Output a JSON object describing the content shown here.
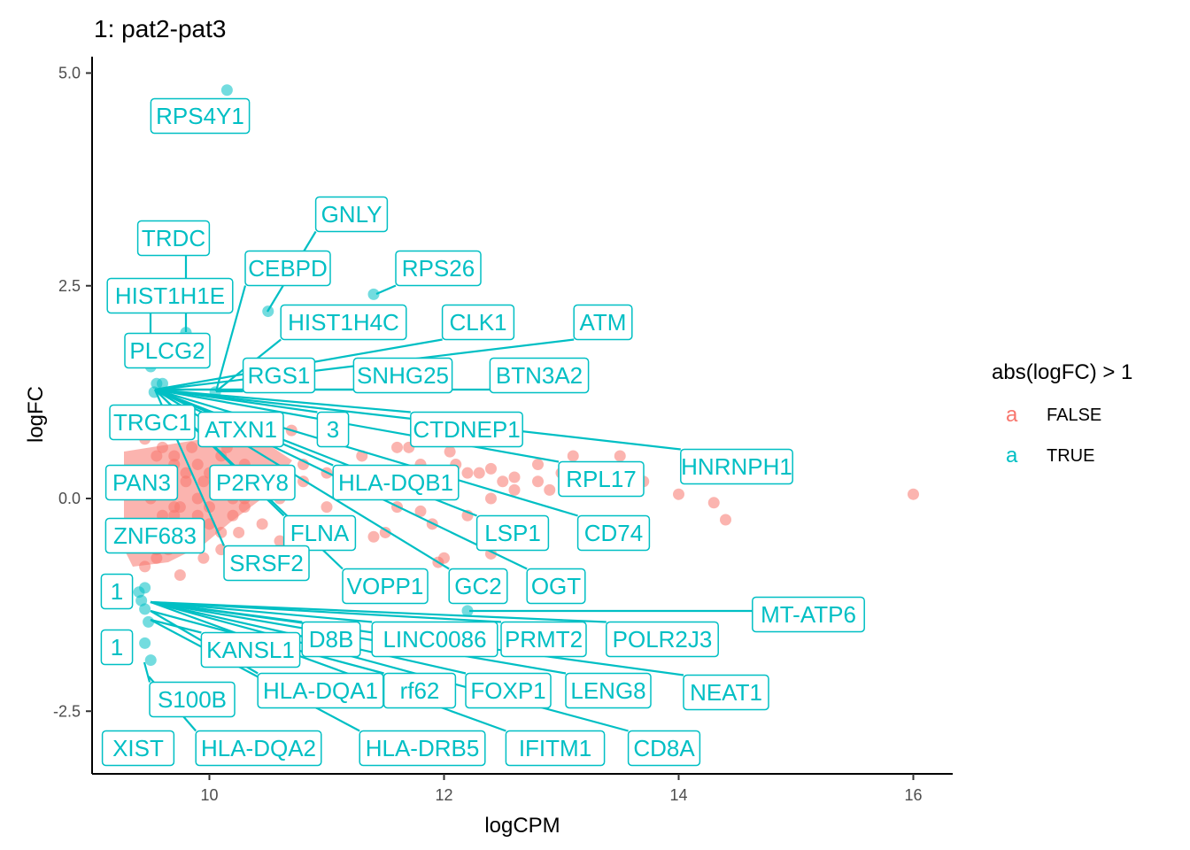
{
  "chart_data": {
    "type": "scatter",
    "title": "1: pat2-pat3",
    "xlabel": "logCPM",
    "ylabel": "logFC",
    "xlim": [
      9.0,
      16.3
    ],
    "ylim": [
      -3.2,
      5.2
    ],
    "xticks": [
      10,
      12,
      14,
      16
    ],
    "yticks": [
      5.0,
      2.5,
      0.0,
      -2.5
    ],
    "ytick_labels": [
      "5.0",
      "2.5",
      "0.0",
      "-2.5"
    ],
    "grid": false,
    "legend": {
      "title": "abs(logFC) > 1",
      "position": "right",
      "key_glyph": "a",
      "entries": [
        {
          "label": "FALSE",
          "color": "#f8766d"
        },
        {
          "label": "TRUE",
          "color": "#00bfc4"
        }
      ]
    },
    "colors": {
      "false": "#f8766d",
      "true": "#00bfc4"
    },
    "series": [
      {
        "name": "FALSE",
        "color": "#f8766d",
        "x": [
          9.45,
          9.5,
          9.55,
          9.6,
          9.65,
          9.7,
          9.75,
          9.8,
          9.85,
          9.9,
          9.95,
          10.0,
          10.05,
          10.1,
          10.2,
          10.3,
          10.4,
          9.45,
          9.5,
          9.55,
          9.6,
          9.7,
          9.8,
          9.9,
          10.0,
          10.1,
          10.2,
          10.3,
          9.45,
          9.5,
          9.6,
          9.7,
          9.8,
          9.9,
          10.0,
          10.15,
          10.3,
          10.5,
          9.45,
          9.55,
          9.65,
          9.75,
          9.85,
          9.95,
          10.1,
          10.25,
          10.45,
          10.6,
          9.5,
          9.6,
          9.7,
          9.8,
          9.9,
          10.05,
          10.2,
          10.4,
          10.6,
          10.8,
          11.0,
          11.2,
          11.4,
          11.6,
          11.8,
          12.0,
          12.2,
          12.4,
          12.6,
          12.8,
          13.0,
          13.3,
          13.5,
          13.7,
          14.0,
          14.3,
          14.4,
          16.0,
          10.8,
          11.0,
          11.3,
          11.7,
          12.1,
          12.3,
          12.5,
          12.8,
          13.1,
          11.5,
          11.9,
          12.2,
          12.9,
          10.7,
          11.1,
          11.6,
          12.0,
          12.4,
          13.6,
          11.95,
          11.4,
          12.05,
          12.4,
          12.6,
          11.8
        ],
        "y": [
          0.1,
          0.3,
          0.5,
          -0.2,
          0.2,
          0.4,
          -0.1,
          0.3,
          0.6,
          0.0,
          0.2,
          -0.3,
          0.1,
          0.5,
          0.2,
          -0.1,
          0.3,
          -0.5,
          -0.3,
          -0.6,
          -0.4,
          -0.2,
          -0.5,
          -0.3,
          -0.1,
          -0.4,
          -0.2,
          0.0,
          0.7,
          0.8,
          0.6,
          0.5,
          0.9,
          0.4,
          0.3,
          0.6,
          0.4,
          0.2,
          -0.8,
          -0.7,
          -0.6,
          -0.9,
          -0.5,
          -0.7,
          -0.6,
          -0.4,
          -0.3,
          -0.5,
          0.0,
          0.1,
          -0.1,
          0.2,
          -0.2,
          0.1,
          0.0,
          0.1,
          0.0,
          0.2,
          -0.1,
          0.3,
          0.1,
          -0.1,
          0.4,
          0.2,
          0.3,
          0.0,
          0.1,
          0.2,
          0.3,
          0.1,
          0.5,
          0.2,
          0.05,
          -0.05,
          -0.25,
          0.05,
          0.4,
          0.3,
          0.5,
          0.6,
          0.4,
          0.3,
          0.2,
          0.4,
          0.5,
          -0.4,
          -0.3,
          -0.2,
          0.1,
          0.8,
          0.2,
          0.6,
          -0.7,
          -0.65,
          0.15,
          -0.75,
          -0.45,
          0.55,
          0.35,
          0.25,
          -0.15
        ]
      },
      {
        "name": "TRUE",
        "color": "#00bfc4",
        "x": [
          10.15,
          11.4,
          10.5,
          10.05,
          9.8,
          9.7,
          9.55,
          9.53,
          9.5,
          9.6,
          12.2,
          9.45,
          9.45,
          9.5,
          9.45,
          9.48,
          9.42,
          9.4
        ],
        "y": [
          4.8,
          2.4,
          2.2,
          1.25,
          1.95,
          1.8,
          1.35,
          1.25,
          1.55,
          1.35,
          -1.32,
          -1.3,
          -1.7,
          -1.9,
          -1.05,
          -1.45,
          -1.2,
          -1.1
        ]
      }
    ],
    "labels": [
      {
        "text": "RPS4Y1"
      },
      {
        "text": "GNLY"
      },
      {
        "text": "TRDC"
      },
      {
        "text": "CEBPD"
      },
      {
        "text": "RPS26"
      },
      {
        "text": "HIST1H1E"
      },
      {
        "text": "HIST1H4C"
      },
      {
        "text": "CLK1"
      },
      {
        "text": "ATM"
      },
      {
        "text": "PLCG2"
      },
      {
        "text": "RGS1"
      },
      {
        "text": "SNHG25"
      },
      {
        "text": "BTN3A2"
      },
      {
        "text": "TRGC1"
      },
      {
        "text": "ATXN1"
      },
      {
        "text": "3"
      },
      {
        "text": "CTDNEP1"
      },
      {
        "text": "HNRNPH1"
      },
      {
        "text": "PAN3"
      },
      {
        "text": "P2RY8"
      },
      {
        "text": "HLA-DQB1"
      },
      {
        "text": "RPL17"
      },
      {
        "text": "ZNF683"
      },
      {
        "text": "FLNA"
      },
      {
        "text": "LSP1"
      },
      {
        "text": "CD74"
      },
      {
        "text": "SRSF2"
      },
      {
        "text": "1"
      },
      {
        "text": "VOPP1"
      },
      {
        "text": "GC2"
      },
      {
        "text": "OGT"
      },
      {
        "text": "MT-ATP6"
      },
      {
        "text": "1"
      },
      {
        "text": "KANSL1"
      },
      {
        "text": "D8B"
      },
      {
        "text": "LINC0086"
      },
      {
        "text": "PRMT2"
      },
      {
        "text": "POLR2J3"
      },
      {
        "text": "S100B"
      },
      {
        "text": "HLA-DQA1"
      },
      {
        "text": "rf62"
      },
      {
        "text": "FOXP1"
      },
      {
        "text": "LENG8"
      },
      {
        "text": "NEAT1"
      },
      {
        "text": "XIST"
      },
      {
        "text": "HLA-DQA2"
      },
      {
        "text": "HLA-DRB5"
      },
      {
        "text": "IFITM1"
      },
      {
        "text": "CD8A"
      }
    ]
  }
}
